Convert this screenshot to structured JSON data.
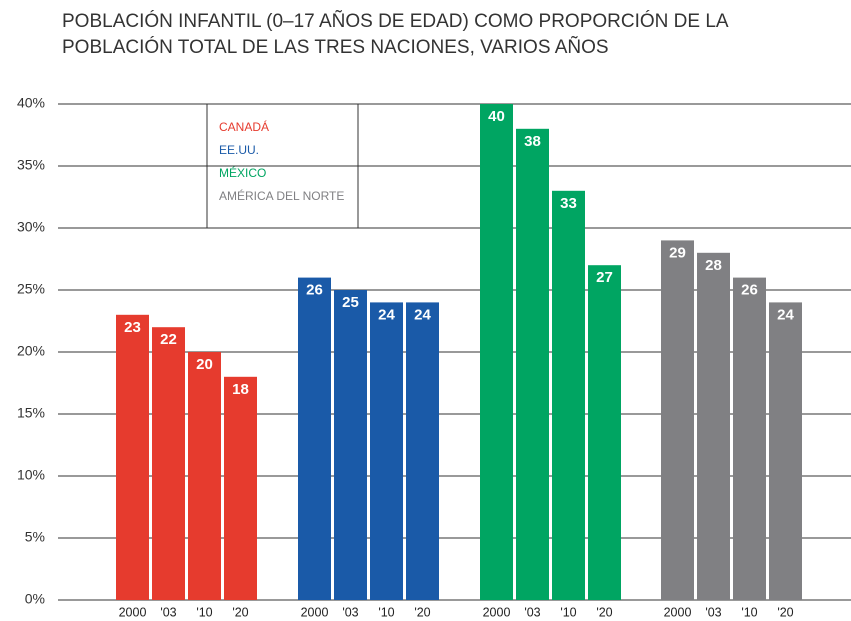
{
  "chart_data": {
    "type": "bar",
    "title": [
      "POBLACIÓN INFANTIL (0–17 AÑOS DE EDAD) COMO PROPORCIÓN DE LA",
      "POBLACIÓN TOTAL DE LAS TRES NACIONES, VARIOS AÑOS"
    ],
    "categories": [
      "2000",
      "'03",
      "'10",
      "'20"
    ],
    "series": [
      {
        "name": "CANADÁ",
        "color": "#e63b2e",
        "values": [
          23,
          22,
          20,
          18
        ]
      },
      {
        "name": "EE.UU.",
        "color": "#1a5aa8",
        "values": [
          26,
          25,
          24,
          24
        ]
      },
      {
        "name": "MÉXICO",
        "color": "#00a562",
        "values": [
          40,
          38,
          33,
          27
        ]
      },
      {
        "name": "AMÉRICA DEL NORTE",
        "color": "#808083",
        "values": [
          29,
          28,
          26,
          24
        ]
      }
    ],
    "ylim": [
      0,
      40
    ],
    "yticks": [
      {
        "value": 0,
        "label": "0%"
      },
      {
        "value": 5,
        "label": "5%"
      },
      {
        "value": 10,
        "label": "10%"
      },
      {
        "value": 15,
        "label": "15%"
      },
      {
        "value": 20,
        "label": "20%"
      },
      {
        "value": 25,
        "label": "25%"
      },
      {
        "value": 30,
        "label": "30%"
      },
      {
        "value": 35,
        "label": "35%"
      },
      {
        "value": 40,
        "label": "40%"
      }
    ],
    "grid": true
  }
}
